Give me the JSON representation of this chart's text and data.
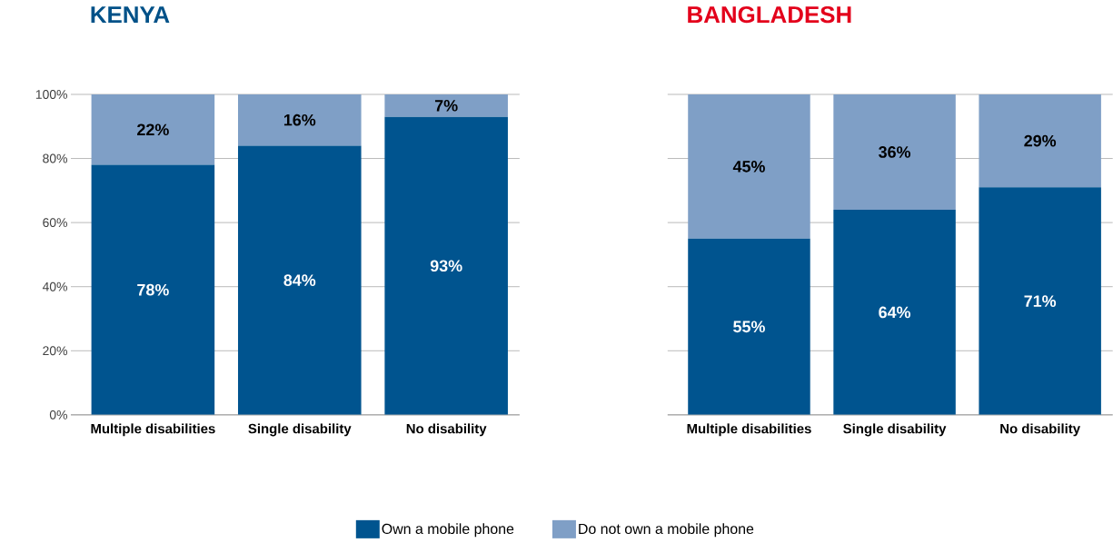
{
  "chart_data": [
    {
      "type": "bar",
      "title": "KENYA",
      "stacked": true,
      "categories": [
        "Multiple disabilities",
        "Single disability",
        "No disability"
      ],
      "series": [
        {
          "name": "Own a mobile phone",
          "color": "#00548f",
          "values": [
            78,
            84,
            93
          ],
          "value_labels": [
            "78%",
            "84%",
            "93%"
          ]
        },
        {
          "name": "Do not own a mobile phone",
          "color": "#7f9fc6",
          "values": [
            22,
            16,
            7
          ],
          "value_labels": [
            "22%",
            "16%",
            "7%"
          ]
        }
      ],
      "ylim": [
        0,
        100
      ],
      "yticks": [
        {
          "value": 0,
          "label": "0%"
        },
        {
          "value": 20,
          "label": "20%"
        },
        {
          "value": 40,
          "label": "40%"
        },
        {
          "value": 60,
          "label": "60%"
        },
        {
          "value": 80,
          "label": "80%"
        },
        {
          "value": 100,
          "label": "100%"
        }
      ],
      "grid": "y",
      "legend": "bottom"
    },
    {
      "type": "bar",
      "title": "BANGLADESH",
      "stacked": true,
      "categories": [
        "Multiple disabilities",
        "Single disability",
        "No disability"
      ],
      "series": [
        {
          "color": "#00548f",
          "values": [
            55,
            64,
            71
          ],
          "value_labels": [
            "55%",
            "64%",
            "71%"
          ]
        },
        {
          "color": "#7f9fc6",
          "values": [
            45,
            36,
            29
          ],
          "value_labels": [
            "45%",
            "36%",
            "29%"
          ]
        }
      ],
      "ylim": [
        0,
        100
      ],
      "yticks": [
        0,
        20,
        40,
        60,
        80,
        100
      ],
      "grid": "y",
      "tick_labels": "x"
    }
  ]
}
